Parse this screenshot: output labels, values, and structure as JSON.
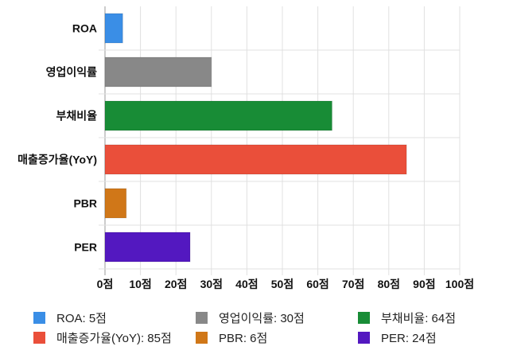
{
  "chart_data": {
    "type": "bar",
    "orientation": "horizontal",
    "categories": [
      "ROA",
      "영업이익률",
      "부채비율",
      "매출증가율(YoY)",
      "PBR",
      "PER"
    ],
    "values": [
      5,
      30,
      64,
      85,
      6,
      24
    ],
    "colors": [
      "#3a8ee6",
      "#888888",
      "#188c36",
      "#ea4f3a",
      "#d07718",
      "#5318c0"
    ],
    "xlim": [
      0,
      100
    ],
    "x_ticks": [
      "0점",
      "10점",
      "20점",
      "30점",
      "40점",
      "50점",
      "60점",
      "70점",
      "80점",
      "90점",
      "100점"
    ],
    "grid": true,
    "legend_position": "bottom",
    "legend": [
      "ROA: 5점",
      "영업이익률: 30점",
      "부채비율: 64점",
      "매출증가율(YoY): 85점",
      "PBR: 6점",
      "PER: 24점"
    ]
  }
}
